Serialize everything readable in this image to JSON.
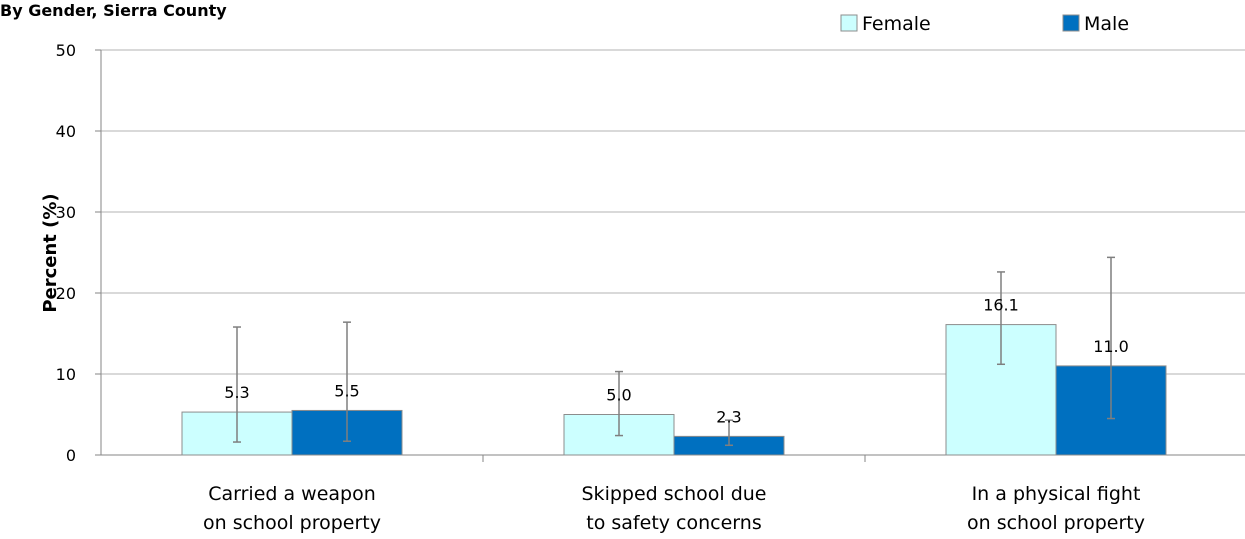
{
  "chart_data": {
    "type": "bar",
    "title": "By Gender, Sierra County",
    "ylabel": "Percent (%)",
    "xlabel": "",
    "ylim": [
      0,
      50
    ],
    "yticks": [
      0,
      10,
      20,
      30,
      40,
      50
    ],
    "grid": true,
    "legend_position": "top-right",
    "categories": [
      [
        "Carried a weapon",
        "on school property"
      ],
      [
        "Skipped school due",
        "to safety concerns"
      ],
      [
        "In a physical fight",
        "on school property"
      ]
    ],
    "series": [
      {
        "name": "Female",
        "color": "#ccffff",
        "values": [
          5.3,
          5.0,
          16.1
        ],
        "labels": [
          "5.3",
          "5.0",
          "16.1"
        ],
        "error_low": [
          1.6,
          2.4,
          11.2
        ],
        "error_high": [
          15.8,
          10.3,
          22.6
        ]
      },
      {
        "name": "Male",
        "color": "#0070c0",
        "values": [
          5.5,
          2.3,
          11.0
        ],
        "labels": [
          "5.5",
          "2.3",
          "11.0"
        ],
        "error_low": [
          1.7,
          1.2,
          4.5
        ],
        "error_high": [
          16.4,
          4.3,
          24.4
        ]
      }
    ]
  }
}
